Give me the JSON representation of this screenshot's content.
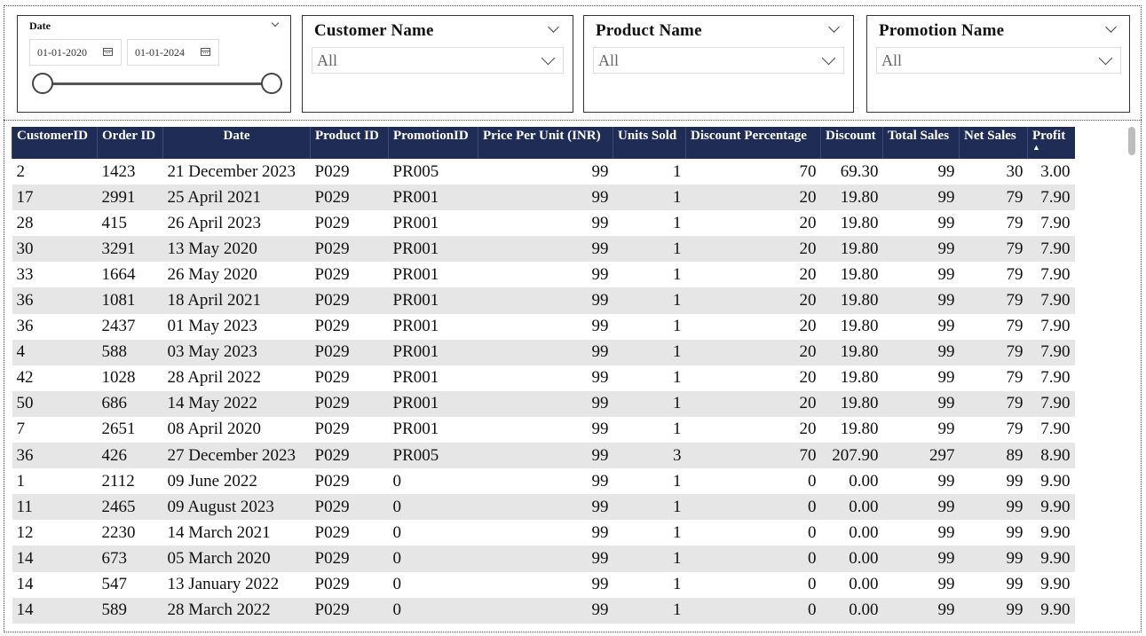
{
  "slicers": {
    "date": {
      "title": "Date",
      "start": "01-01-2020",
      "end": "01-01-2024"
    },
    "customer": {
      "title": "Customer Name",
      "value": "All"
    },
    "product": {
      "title": "Product Name",
      "value": "All"
    },
    "promotion": {
      "title": "Promotion Name",
      "value": "All"
    }
  },
  "table": {
    "headers": [
      "CustomerID",
      "Order ID",
      "Date",
      "Product ID",
      "PromotionID",
      "Price Per Unit (INR)",
      "Units Sold",
      "Discount Percentage",
      "Discount",
      "Total Sales",
      "Net Sales",
      "Profit"
    ],
    "sort_indicator": "▲",
    "rows": [
      [
        "2",
        "1423",
        "21 December 2023",
        "P029",
        "PR005",
        "99",
        "1",
        "70",
        "69.30",
        "99",
        "30",
        "3.00"
      ],
      [
        "17",
        "2991",
        "25 April 2021",
        "P029",
        "PR001",
        "99",
        "1",
        "20",
        "19.80",
        "99",
        "79",
        "7.90"
      ],
      [
        "28",
        "415",
        "26 April 2023",
        "P029",
        "PR001",
        "99",
        "1",
        "20",
        "19.80",
        "99",
        "79",
        "7.90"
      ],
      [
        "30",
        "3291",
        "13 May 2020",
        "P029",
        "PR001",
        "99",
        "1",
        "20",
        "19.80",
        "99",
        "79",
        "7.90"
      ],
      [
        "33",
        "1664",
        "26 May 2020",
        "P029",
        "PR001",
        "99",
        "1",
        "20",
        "19.80",
        "99",
        "79",
        "7.90"
      ],
      [
        "36",
        "1081",
        "18 April 2021",
        "P029",
        "PR001",
        "99",
        "1",
        "20",
        "19.80",
        "99",
        "79",
        "7.90"
      ],
      [
        "36",
        "2437",
        "01 May 2023",
        "P029",
        "PR001",
        "99",
        "1",
        "20",
        "19.80",
        "99",
        "79",
        "7.90"
      ],
      [
        "4",
        "588",
        "03 May 2023",
        "P029",
        "PR001",
        "99",
        "1",
        "20",
        "19.80",
        "99",
        "79",
        "7.90"
      ],
      [
        "42",
        "1028",
        "28 April 2022",
        "P029",
        "PR001",
        "99",
        "1",
        "20",
        "19.80",
        "99",
        "79",
        "7.90"
      ],
      [
        "50",
        "686",
        "14 May 2022",
        "P029",
        "PR001",
        "99",
        "1",
        "20",
        "19.80",
        "99",
        "79",
        "7.90"
      ],
      [
        "7",
        "2651",
        "08 April 2020",
        "P029",
        "PR001",
        "99",
        "1",
        "20",
        "19.80",
        "99",
        "79",
        "7.90"
      ],
      [
        "36",
        "426",
        "27 December 2023",
        "P029",
        "PR005",
        "99",
        "3",
        "70",
        "207.90",
        "297",
        "89",
        "8.90"
      ],
      [
        "1",
        "2112",
        "09 June 2022",
        "P029",
        "0",
        "99",
        "1",
        "0",
        "0.00",
        "99",
        "99",
        "9.90"
      ],
      [
        "11",
        "2465",
        "09 August 2023",
        "P029",
        "0",
        "99",
        "1",
        "0",
        "0.00",
        "99",
        "99",
        "9.90"
      ],
      [
        "12",
        "2230",
        "14 March 2021",
        "P029",
        "0",
        "99",
        "1",
        "0",
        "0.00",
        "99",
        "99",
        "9.90"
      ],
      [
        "14",
        "673",
        "05 March 2020",
        "P029",
        "0",
        "99",
        "1",
        "0",
        "0.00",
        "99",
        "99",
        "9.90"
      ],
      [
        "14",
        "547",
        "13 January 2022",
        "P029",
        "0",
        "99",
        "1",
        "0",
        "0.00",
        "99",
        "99",
        "9.90"
      ],
      [
        "14",
        "589",
        "28 March 2022",
        "P029",
        "0",
        "99",
        "1",
        "0",
        "0.00",
        "99",
        "99",
        "9.90"
      ]
    ]
  }
}
